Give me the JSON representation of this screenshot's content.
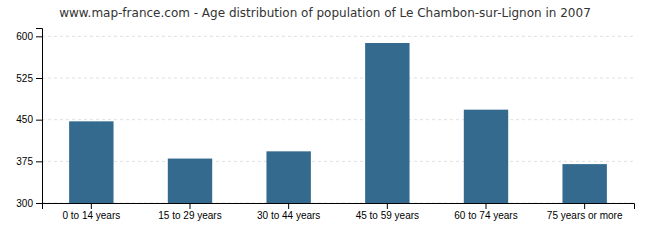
{
  "chart_data": {
    "type": "bar",
    "title": "www.map-france.com - Age distribution of population of Le Chambon-sur-Lignon in 2007",
    "categories": [
      "0 to 14 years",
      "15 to 29 years",
      "30 to 44 years",
      "45 to 59 years",
      "60 to 74 years",
      "75 years or more"
    ],
    "values": [
      447,
      380,
      393,
      588,
      468,
      370
    ],
    "color": "#336a8e",
    "ylim": [
      300,
      615
    ],
    "yticks": [
      300,
      375,
      450,
      525,
      600
    ],
    "grid": true
  }
}
